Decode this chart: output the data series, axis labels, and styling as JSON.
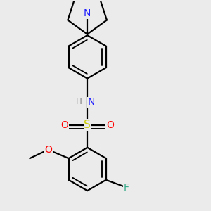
{
  "background_color": "#ebebeb",
  "atom_colors": {
    "N": "#2020ff",
    "O": "#ff0000",
    "S": "#cccc00",
    "F": "#33aa88",
    "H": "#808080",
    "C": "#000000"
  },
  "bond_color": "#000000",
  "bond_width": 1.6,
  "font_size_atom": 10,
  "font_size_small": 8.5
}
